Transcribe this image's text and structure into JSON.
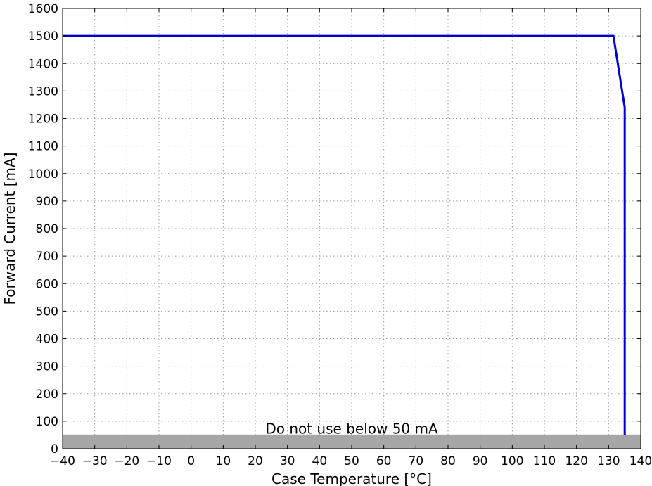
{
  "chart_data": {
    "type": "line",
    "title": "",
    "xlabel": "Case Temperature [°C]",
    "ylabel": "Forward Current [mA]",
    "xlim": [
      -40,
      140
    ],
    "ylim": [
      0,
      1600
    ],
    "xticks": [
      -40,
      -30,
      -20,
      -10,
      0,
      10,
      20,
      30,
      40,
      50,
      60,
      70,
      80,
      90,
      100,
      110,
      120,
      130,
      140
    ],
    "xtick_labels": [
      "−40",
      "−30",
      "−20",
      "−10",
      "0",
      "10",
      "20",
      "30",
      "40",
      "50",
      "60",
      "70",
      "80",
      "90",
      "100",
      "110",
      "120",
      "130",
      "140"
    ],
    "yticks": [
      0,
      100,
      200,
      300,
      400,
      500,
      600,
      700,
      800,
      900,
      1000,
      1100,
      1200,
      1300,
      1400,
      1500,
      1600
    ],
    "ytick_labels": [
      "0",
      "100",
      "200",
      "300",
      "400",
      "500",
      "600",
      "700",
      "800",
      "900",
      "1000",
      "1100",
      "1200",
      "1300",
      "1400",
      "1500",
      "1600"
    ],
    "grid": true,
    "series": [
      {
        "color": "#0000cc",
        "x": [
          -40,
          131.5,
          135,
          135
        ],
        "y": [
          1500,
          1500,
          1240,
          50
        ]
      }
    ],
    "shaded_region": {
      "y_from": 0,
      "y_to": 50,
      "color": "#a6a6a6",
      "label": "Do not use below 50 mA"
    }
  }
}
